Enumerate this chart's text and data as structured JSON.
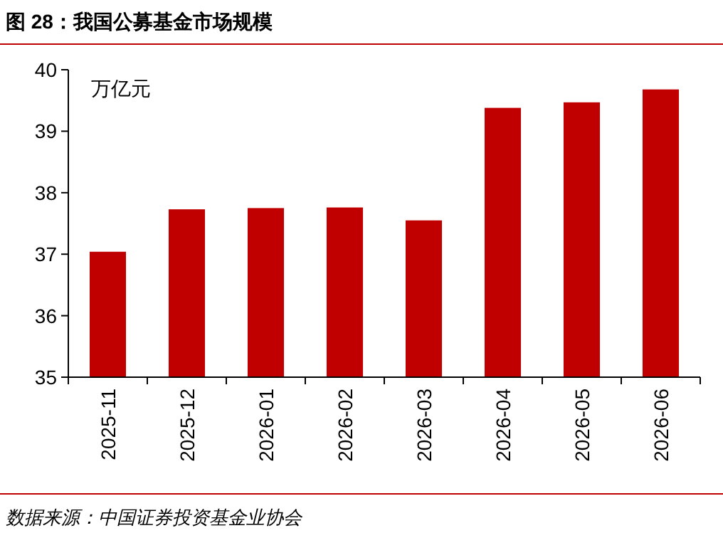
{
  "chart_data": {
    "type": "bar",
    "title": "图 28：我国公募基金市场规模",
    "ylabel": "万亿元",
    "categories": [
      "2025-11",
      "2025-12",
      "2026-01",
      "2026-02",
      "2026-03",
      "2026-04",
      "2026-05",
      "2026-06"
    ],
    "values": [
      37.04,
      37.73,
      37.75,
      37.76,
      37.55,
      39.38,
      39.47,
      39.68
    ],
    "color": "#c00000",
    "ylim": [
      35,
      40
    ],
    "yticks": [
      35,
      36,
      37,
      38,
      39,
      40
    ],
    "annotations": [
      "数据来源：中国证券投资基金业协会"
    ]
  }
}
